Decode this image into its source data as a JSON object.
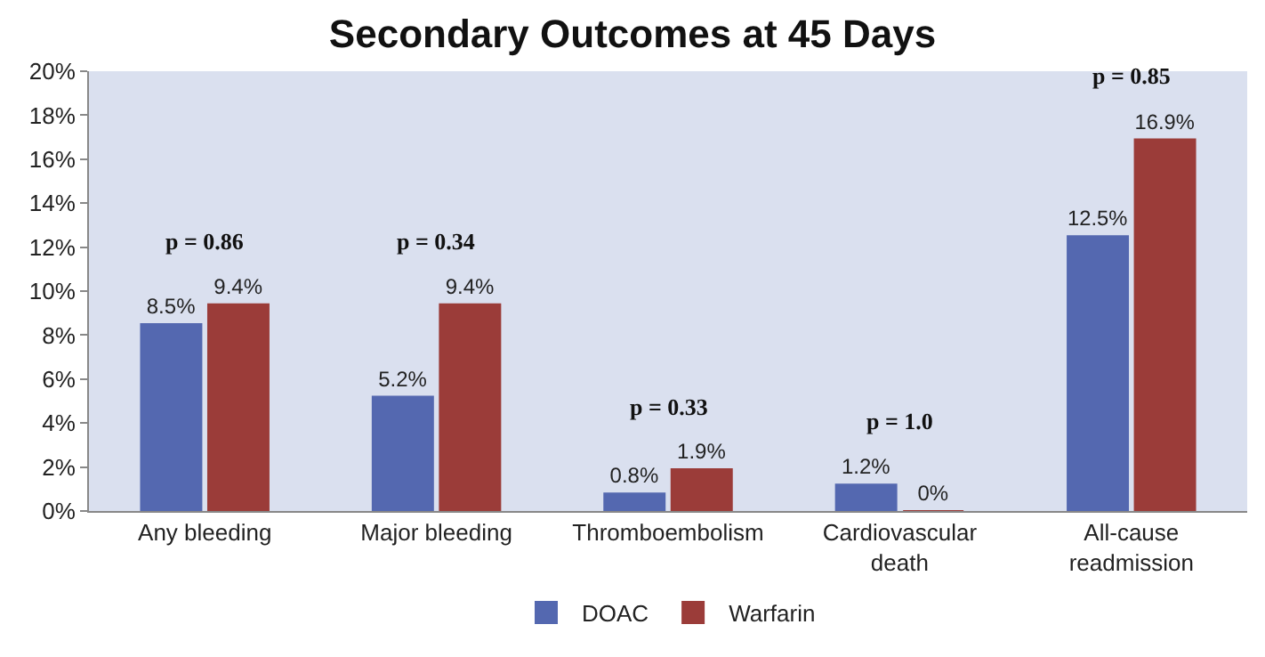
{
  "chart_data": {
    "type": "bar",
    "title": "Secondary Outcomes at 45 Days",
    "categories": [
      "Any bleeding",
      "Major bleeding",
      "Thromboembolism",
      "Cardiovascular\ndeath",
      "All-cause\nreadmission"
    ],
    "series": [
      {
        "name": "DOAC",
        "color": "#5468b0",
        "values": [
          8.5,
          5.2,
          0.8,
          1.2,
          12.5
        ],
        "value_labels": [
          "8.5%",
          "5.2%",
          "0.8%",
          "1.2%",
          "12.5%"
        ]
      },
      {
        "name": "Warfarin",
        "color": "#9b3c39",
        "values": [
          9.4,
          9.4,
          1.9,
          0,
          16.9
        ],
        "value_labels": [
          "9.4%",
          "9.4%",
          "1.9%",
          "0%",
          "16.9%"
        ]
      }
    ],
    "ylim": [
      0,
      20
    ],
    "yticks": [
      {
        "value": 0,
        "label": "0%"
      },
      {
        "value": 2,
        "label": "2%"
      },
      {
        "value": 4,
        "label": "4%"
      },
      {
        "value": 6,
        "label": "6%"
      },
      {
        "value": 8,
        "label": "8%"
      },
      {
        "value": 10,
        "label": "10%"
      },
      {
        "value": 12,
        "label": "12%"
      },
      {
        "value": 14,
        "label": "14%"
      },
      {
        "value": 16,
        "label": "16%"
      },
      {
        "value": 18,
        "label": "18%"
      },
      {
        "value": 20,
        "label": "20%"
      }
    ],
    "annotations": [
      "p = 0.86",
      "p = 0.34",
      "p = 0.33",
      "p = 1.0",
      "p = 0.85"
    ],
    "grid": false,
    "legend": "bottom"
  }
}
